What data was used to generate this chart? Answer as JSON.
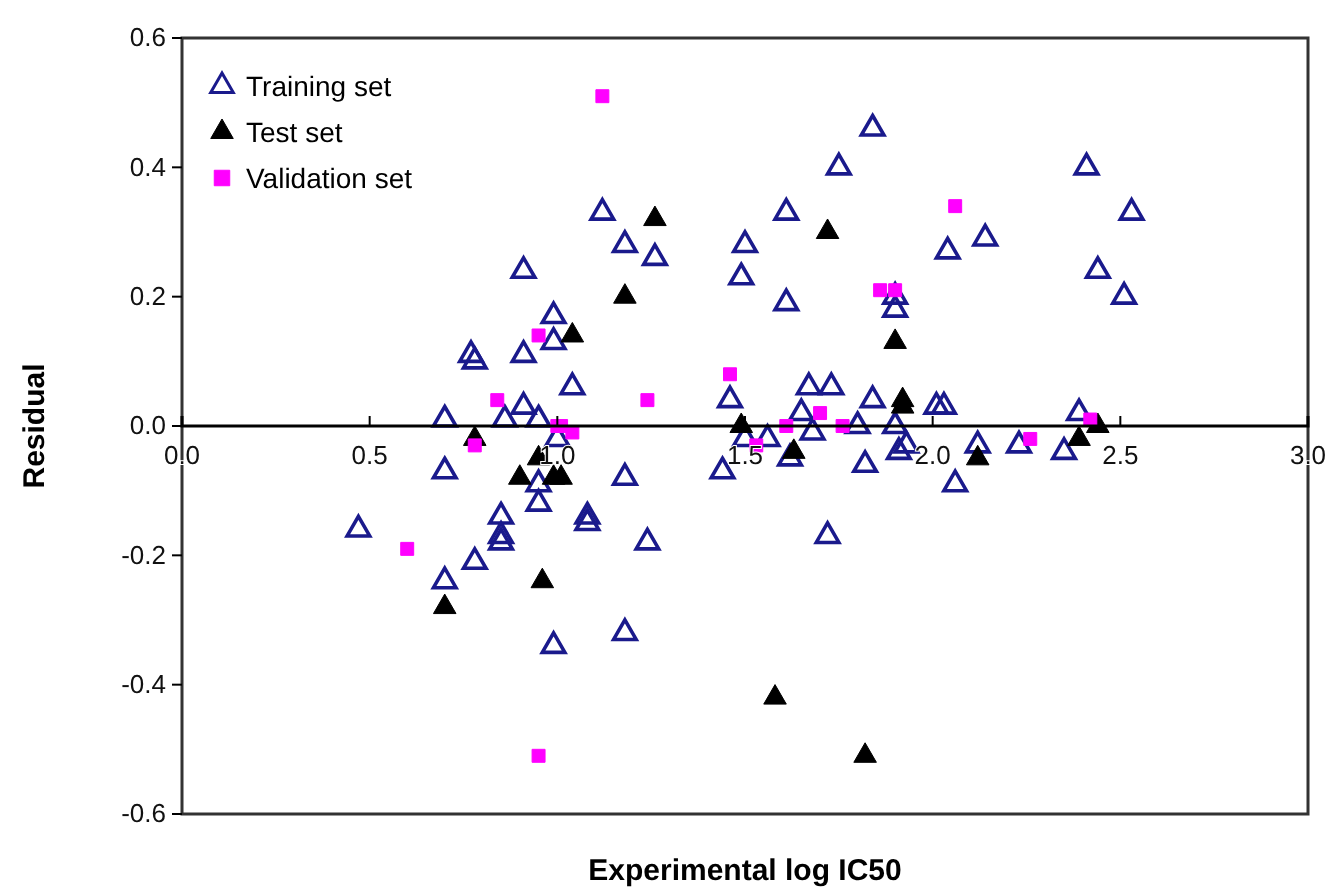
{
  "chart_data": {
    "type": "scatter",
    "xlabel": "Experimental log IC50",
    "ylabel": "Residual",
    "xlim": [
      0,
      3
    ],
    "ylim": [
      -0.6,
      0.6
    ],
    "xticks": [
      {
        "value": 0,
        "label": "0.0"
      },
      {
        "value": 0.5,
        "label": "0.5"
      },
      {
        "value": 1,
        "label": "1.0"
      },
      {
        "value": 1.5,
        "label": "1.5"
      },
      {
        "value": 2,
        "label": "2.0"
      },
      {
        "value": 2.5,
        "label": "2.5"
      },
      {
        "value": 3,
        "label": "3.0"
      }
    ],
    "yticks": [
      {
        "value": -0.6,
        "label": "-0.6"
      },
      {
        "value": -0.4,
        "label": "-0.4"
      },
      {
        "value": -0.2,
        "label": "-0.2"
      },
      {
        "value": 0,
        "label": "0.0"
      },
      {
        "value": 0.2,
        "label": "0.2"
      },
      {
        "value": 0.4,
        "label": "0.4"
      },
      {
        "value": 0.6,
        "label": "0.6"
      }
    ],
    "grid": false,
    "legend": "top left",
    "series": [
      {
        "name": "Training set",
        "color": "#1a1a8c",
        "marker": "triangle",
        "x": [
          0.47,
          0.7,
          0.7,
          0.7,
          0.78,
          0.85,
          0.85,
          0.85,
          0.77,
          0.91,
          0.78,
          0.91,
          0.91,
          0.86,
          0.95,
          0.99,
          0.99,
          0.95,
          0.95,
          0.99,
          1.12,
          1.18,
          1.26,
          1.5,
          1.49,
          1.61,
          1.61,
          1.75,
          1.84,
          1.9,
          1.9,
          1.04,
          1.46,
          1.67,
          1.73,
          1.84,
          2.01,
          2.41,
          2.53,
          2.14,
          2.04,
          2.44,
          2.51,
          2.03,
          2.39,
          1.0,
          1.08,
          1.08,
          1.18,
          1.24,
          1.18,
          1.44,
          1.5,
          1.56,
          1.62,
          1.65,
          1.68,
          1.72,
          1.8,
          1.82,
          1.9,
          1.91,
          1.93,
          2.06,
          2.12,
          2.23,
          2.35
        ],
        "values": [
          -0.16,
          -0.07,
          0.01,
          -0.24,
          -0.21,
          -0.14,
          -0.17,
          -0.18,
          0.11,
          0.24,
          0.1,
          0.11,
          0.03,
          0.01,
          0.01,
          0.17,
          0.13,
          -0.09,
          -0.12,
          -0.34,
          0.33,
          0.28,
          0.26,
          0.28,
          0.23,
          0.33,
          0.19,
          0.4,
          0.46,
          0.2,
          0.18,
          0.06,
          0.04,
          0.06,
          0.06,
          0.04,
          0.03,
          0.4,
          0.33,
          0.29,
          0.27,
          0.24,
          0.2,
          0.03,
          0.02,
          -0.02,
          -0.14,
          -0.15,
          -0.08,
          -0.18,
          -0.32,
          -0.07,
          -0.02,
          -0.02,
          -0.05,
          0.02,
          -0.01,
          -0.17,
          0.0,
          -0.06,
          0.0,
          -0.04,
          -0.03,
          -0.09,
          -0.03,
          -0.03,
          -0.04
        ]
      },
      {
        "name": "Test set",
        "color": "#000000",
        "marker": "triangle",
        "x": [
          0.78,
          0.9,
          0.95,
          0.96,
          0.7,
          0.99,
          1.01,
          1.49,
          1.63,
          1.58,
          1.82,
          1.92,
          1.26,
          1.18,
          1.04,
          1.72,
          1.9,
          1.92,
          2.12,
          2.39,
          2.44
        ],
        "values": [
          -0.02,
          -0.08,
          -0.05,
          -0.24,
          -0.28,
          -0.08,
          -0.08,
          0.0,
          -0.04,
          -0.42,
          -0.51,
          0.03,
          0.32,
          0.2,
          0.14,
          0.3,
          0.13,
          0.04,
          -0.05,
          -0.02,
          0.0
        ]
      },
      {
        "name": "Validation set",
        "color": "#ff00ff",
        "marker": "square",
        "x": [
          0.95,
          0.84,
          0.78,
          0.6,
          0.95,
          1.0,
          1.01,
          1.04,
          1.24,
          1.12,
          1.46,
          1.86,
          1.9,
          1.53,
          1.61,
          1.7,
          1.76,
          2.06,
          2.26,
          2.42
        ],
        "values": [
          0.14,
          0.04,
          -0.03,
          -0.19,
          -0.51,
          0.0,
          0.0,
          -0.01,
          0.04,
          0.51,
          0.08,
          0.21,
          0.21,
          -0.03,
          0.0,
          0.02,
          0.0,
          0.34,
          -0.02,
          0.01
        ]
      }
    ]
  }
}
